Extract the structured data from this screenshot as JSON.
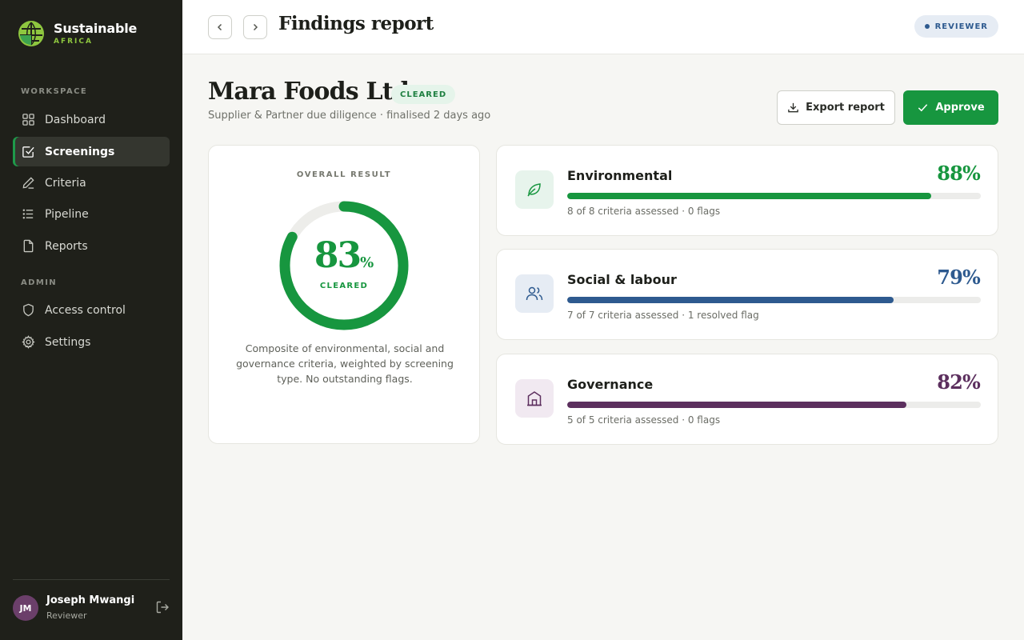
{
  "brand": {
    "name": "Sustainable",
    "sub": "AFRICA"
  },
  "sidebar": {
    "workspace_label": "WORKSPACE",
    "admin_label": "ADMIN",
    "items": [
      {
        "label": "Dashboard",
        "icon": "grid-icon"
      },
      {
        "label": "Screenings",
        "icon": "check-square-icon"
      },
      {
        "label": "Criteria",
        "icon": "pencil-icon"
      },
      {
        "label": "Pipeline",
        "icon": "list-icon"
      },
      {
        "label": "Reports",
        "icon": "file-icon"
      },
      {
        "label": "Access control",
        "icon": "shield-icon"
      },
      {
        "label": "Settings",
        "icon": "gear-icon"
      }
    ],
    "active": "Screenings"
  },
  "user": {
    "initials": "JM",
    "name": "Joseph Mwangi",
    "role": "Reviewer"
  },
  "topbar": {
    "title": "Findings report",
    "role_badge": "REVIEWER"
  },
  "report": {
    "company": "Mara Foods Ltd",
    "status": "CLEARED",
    "subtitle": "Supplier & Partner due diligence · finalised 2 days ago",
    "export_label": "Export report",
    "approve_label": "Approve"
  },
  "overall": {
    "label": "OVERALL RESULT",
    "score": "83",
    "score_value": 83,
    "pct_sign": "%",
    "caption": "CLEARED",
    "description": "Composite of environmental, social and governance criteria, weighted by screening type. No outstanding flags."
  },
  "categories": [
    {
      "name": "Environmental",
      "score": "88%",
      "value": 88,
      "meta": "8 of 8 criteria assessed · 0 flags",
      "color": "#17963f",
      "tint": "#e7f4ec",
      "icon": "leaf-icon"
    },
    {
      "name": "Social & labour",
      "score": "79%",
      "value": 79,
      "meta": "7 of 7 criteria assessed · 1 resolved flag",
      "color": "#2e5a8f",
      "tint": "#e6ecf4",
      "icon": "users-icon"
    },
    {
      "name": "Governance",
      "score": "82%",
      "value": 82,
      "meta": "5 of 5 criteria assessed · 0 flags",
      "color": "#5c2f5e",
      "tint": "#f1e9f1",
      "icon": "building-icon"
    }
  ],
  "colors": {
    "accent": "#17963f",
    "sidebar_bg": "#1f201a",
    "page_bg": "#f6f6f3"
  }
}
